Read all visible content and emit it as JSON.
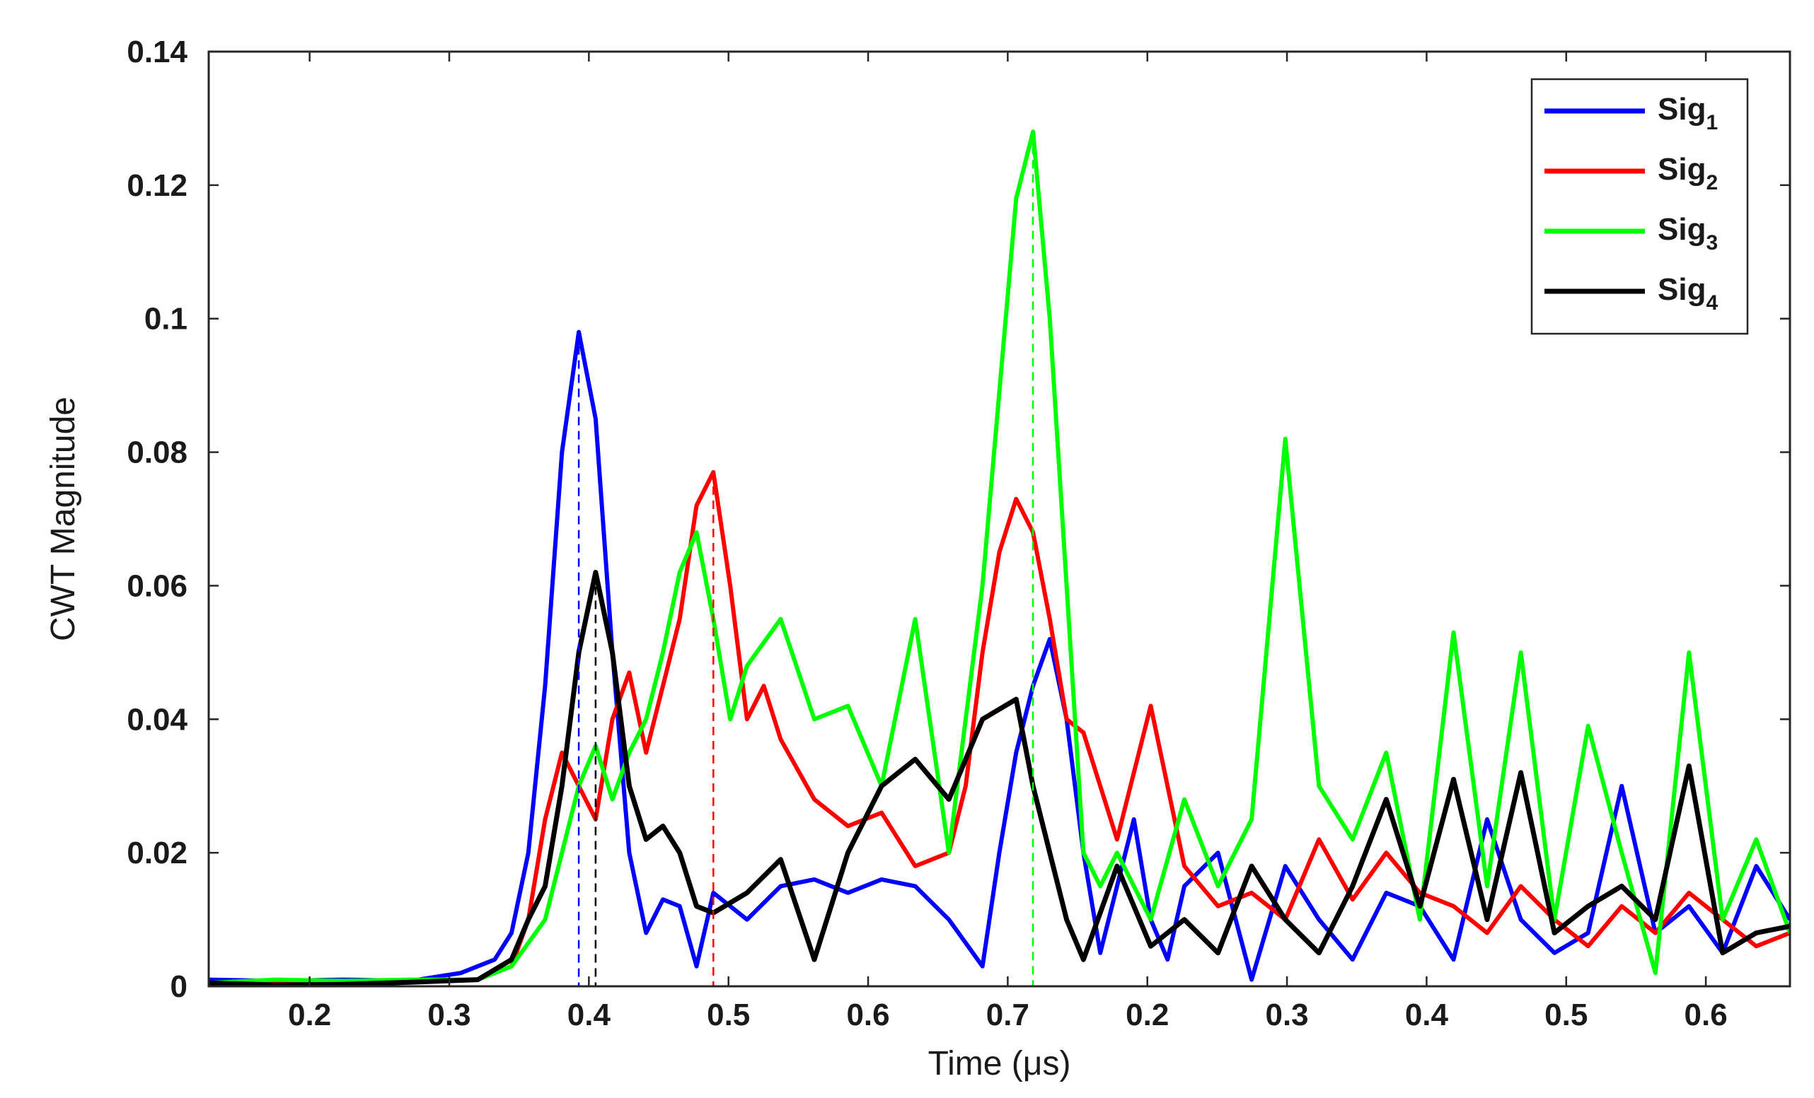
{
  "chart_data": {
    "type": "line",
    "xlabel": "Time (μs)",
    "ylabel": "CWT Magnitude",
    "xlim": [
      0.17,
      0.64
    ],
    "ylim": [
      0,
      0.14
    ],
    "x_tick_labels": [
      "0.2",
      "0.3",
      "0.4",
      "0.5",
      "0.6",
      "0.7",
      "0.2",
      "0.3",
      "0.4",
      "0.5",
      "0.6"
    ],
    "y_tick_labels": [
      "0",
      "0.02",
      "0.04",
      "0.06",
      "0.08",
      "0.1",
      "0.12",
      "0.14"
    ],
    "grid": false,
    "legend_position": "top-right",
    "series": [
      {
        "name": "Sig1",
        "legend_base": "Sig",
        "legend_sub": "1",
        "color": "#0000ff",
        "x": [
          0.17,
          0.19,
          0.21,
          0.23,
          0.245,
          0.255,
          0.26,
          0.265,
          0.27,
          0.275,
          0.28,
          0.285,
          0.29,
          0.295,
          0.3,
          0.305,
          0.31,
          0.315,
          0.32,
          0.33,
          0.34,
          0.35,
          0.36,
          0.37,
          0.38,
          0.39,
          0.4,
          0.405,
          0.41,
          0.415,
          0.42,
          0.425,
          0.43,
          0.435,
          0.44,
          0.445,
          0.45,
          0.455,
          0.46,
          0.47,
          0.48,
          0.49,
          0.5,
          0.51,
          0.52,
          0.53,
          0.54,
          0.55,
          0.56,
          0.57,
          0.58,
          0.59,
          0.6,
          0.61,
          0.62,
          0.63,
          0.64
        ],
        "y": [
          0.001,
          0.0008,
          0.001,
          0.0008,
          0.002,
          0.004,
          0.008,
          0.02,
          0.045,
          0.08,
          0.098,
          0.085,
          0.05,
          0.02,
          0.008,
          0.013,
          0.012,
          0.003,
          0.014,
          0.01,
          0.015,
          0.016,
          0.014,
          0.016,
          0.015,
          0.01,
          0.003,
          0.02,
          0.035,
          0.045,
          0.052,
          0.04,
          0.02,
          0.005,
          0.015,
          0.025,
          0.01,
          0.004,
          0.015,
          0.02,
          0.001,
          0.018,
          0.01,
          0.004,
          0.014,
          0.012,
          0.004,
          0.025,
          0.01,
          0.005,
          0.008,
          0.03,
          0.008,
          0.012,
          0.005,
          0.018,
          0.01
        ],
        "x_display_note": ""
      },
      {
        "name": "Sig2",
        "legend_base": "Sig",
        "legend_sub": "2",
        "color": "#ff0000",
        "x": [
          0.17,
          0.19,
          0.21,
          0.23,
          0.25,
          0.26,
          0.265,
          0.27,
          0.275,
          0.28,
          0.285,
          0.29,
          0.295,
          0.3,
          0.305,
          0.31,
          0.315,
          0.32,
          0.325,
          0.33,
          0.335,
          0.34,
          0.35,
          0.36,
          0.37,
          0.38,
          0.39,
          0.395,
          0.4,
          0.405,
          0.41,
          0.415,
          0.42,
          0.425,
          0.43,
          0.44,
          0.45,
          0.46,
          0.47,
          0.48,
          0.49,
          0.5,
          0.51,
          0.52,
          0.53,
          0.54,
          0.55,
          0.56,
          0.57,
          0.58,
          0.59,
          0.6,
          0.61,
          0.62,
          0.63,
          0.64
        ],
        "y": [
          0.0005,
          0.0008,
          0.0006,
          0.0008,
          0.001,
          0.003,
          0.01,
          0.025,
          0.035,
          0.03,
          0.025,
          0.04,
          0.047,
          0.035,
          0.045,
          0.055,
          0.072,
          0.077,
          0.06,
          0.04,
          0.045,
          0.037,
          0.028,
          0.024,
          0.026,
          0.018,
          0.02,
          0.03,
          0.05,
          0.065,
          0.073,
          0.068,
          0.055,
          0.04,
          0.038,
          0.022,
          0.042,
          0.018,
          0.012,
          0.014,
          0.01,
          0.022,
          0.013,
          0.02,
          0.014,
          0.012,
          0.008,
          0.015,
          0.01,
          0.006,
          0.012,
          0.008,
          0.014,
          0.01,
          0.006,
          0.008
        ],
        "x_display_note": ""
      },
      {
        "name": "Sig3",
        "legend_base": "Sig",
        "legend_sub": "3",
        "color": "#00ff00",
        "x": [
          0.17,
          0.19,
          0.21,
          0.23,
          0.25,
          0.26,
          0.27,
          0.275,
          0.28,
          0.285,
          0.29,
          0.295,
          0.3,
          0.305,
          0.31,
          0.315,
          0.32,
          0.325,
          0.33,
          0.34,
          0.35,
          0.36,
          0.37,
          0.38,
          0.39,
          0.4,
          0.41,
          0.415,
          0.42,
          0.425,
          0.43,
          0.435,
          0.44,
          0.45,
          0.46,
          0.47,
          0.48,
          0.49,
          0.5,
          0.51,
          0.52,
          0.53,
          0.54,
          0.55,
          0.56,
          0.57,
          0.58,
          0.59,
          0.6,
          0.61,
          0.62,
          0.63,
          0.64
        ],
        "y": [
          0.0005,
          0.001,
          0.0008,
          0.001,
          0.001,
          0.003,
          0.01,
          0.02,
          0.03,
          0.036,
          0.028,
          0.035,
          0.04,
          0.05,
          0.062,
          0.068,
          0.055,
          0.04,
          0.048,
          0.055,
          0.04,
          0.042,
          0.03,
          0.055,
          0.02,
          0.06,
          0.118,
          0.128,
          0.1,
          0.06,
          0.02,
          0.015,
          0.02,
          0.01,
          0.028,
          0.015,
          0.025,
          0.082,
          0.03,
          0.022,
          0.035,
          0.01,
          0.053,
          0.015,
          0.05,
          0.01,
          0.039,
          0.02,
          0.002,
          0.05,
          0.01,
          0.022,
          0.008
        ],
        "x_display_note": ""
      },
      {
        "name": "Sig4",
        "legend_base": "Sig",
        "legend_sub": "4",
        "color": "#000000",
        "x": [
          0.17,
          0.19,
          0.21,
          0.23,
          0.25,
          0.26,
          0.265,
          0.27,
          0.275,
          0.28,
          0.285,
          0.29,
          0.295,
          0.3,
          0.305,
          0.31,
          0.315,
          0.32,
          0.33,
          0.34,
          0.35,
          0.36,
          0.37,
          0.38,
          0.39,
          0.4,
          0.41,
          0.415,
          0.42,
          0.425,
          0.43,
          0.44,
          0.45,
          0.46,
          0.47,
          0.48,
          0.49,
          0.5,
          0.51,
          0.52,
          0.53,
          0.54,
          0.55,
          0.56,
          0.57,
          0.58,
          0.59,
          0.6,
          0.61,
          0.62,
          0.63,
          0.64
        ],
        "y": [
          0.0005,
          0.0002,
          0.0003,
          0.0006,
          0.001,
          0.004,
          0.01,
          0.015,
          0.03,
          0.05,
          0.062,
          0.05,
          0.03,
          0.022,
          0.024,
          0.02,
          0.012,
          0.011,
          0.014,
          0.019,
          0.004,
          0.02,
          0.03,
          0.034,
          0.028,
          0.04,
          0.043,
          0.03,
          0.02,
          0.01,
          0.004,
          0.018,
          0.006,
          0.01,
          0.005,
          0.018,
          0.01,
          0.005,
          0.015,
          0.028,
          0.012,
          0.031,
          0.01,
          0.032,
          0.008,
          0.012,
          0.015,
          0.01,
          0.033,
          0.005,
          0.008,
          0.009
        ],
        "x_display_note": ""
      }
    ]
  }
}
